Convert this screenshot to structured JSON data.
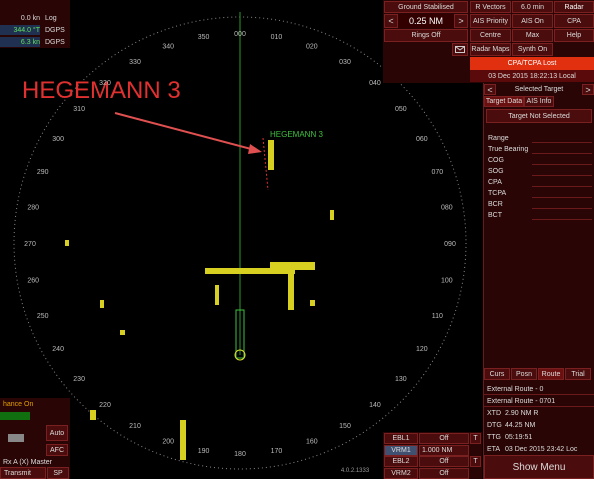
{
  "own_ship": {
    "log_speed": "0.0 kn",
    "log_source": "Log",
    "heading": "344.0 °T",
    "heading_source": "DGPS",
    "speed": "6.3 kn",
    "speed_source": "DGPS"
  },
  "radar": {
    "bearings": [
      "000",
      "010",
      "020",
      "030",
      "040",
      "050",
      "060",
      "070",
      "080",
      "090",
      "100",
      "110",
      "120",
      "130",
      "140",
      "150",
      "160",
      "170",
      "180",
      "190",
      "200",
      "210",
      "220",
      "230",
      "240",
      "250",
      "260",
      "270",
      "280",
      "290",
      "300",
      "310",
      "320",
      "330",
      "340",
      "350"
    ],
    "target_label": "HEGEMANN 3",
    "annotation": "HEGEMANN 3"
  },
  "top_controls": {
    "stabilisation": "Ground Stabilised",
    "vectors": "R Vectors",
    "vector_time": "6.0 min",
    "mode": "Radar",
    "range_down": "<",
    "range": "0.25 NM",
    "range_up": ">",
    "ais_priority": "AIS Priority",
    "ais": "AIS On",
    "cpa": "CPA",
    "rings": "Rings Off",
    "centre": "Centre",
    "max": "Max",
    "help": "Help",
    "radar_maps": "Radar Maps",
    "synth": "Synth On",
    "alarm": "CPA/TCPA Lost",
    "datetime": "03 Dec 2015 18:22:13 Local"
  },
  "selected_target": {
    "prev": "<",
    "title": "Selected Target",
    "next": ">",
    "tabs": [
      "Target Data",
      "AIS Info"
    ],
    "status": "Target Not Selected",
    "fields": [
      "Range",
      "True Bearing",
      "COG",
      "SOG",
      "CPA",
      "TCPA",
      "BCR",
      "BCT"
    ]
  },
  "route_panel": {
    "tabs": [
      "Curs",
      "Posn",
      "Route",
      "Trial"
    ],
    "lines": [
      "External Route - 0",
      "External Route - 0701"
    ],
    "rows": [
      [
        "XTD",
        "2.90 NM R"
      ],
      [
        "DTG",
        "44.25 NM"
      ],
      [
        "TTG",
        "05:19:51"
      ],
      [
        "ETA",
        "03 Dec 2015 23:42 Loc"
      ]
    ],
    "menu": "Show Menu"
  },
  "ebl_vrm": {
    "rows": [
      [
        "EBL1",
        "Off",
        "T"
      ],
      [
        "VRM1",
        "1.000 NM",
        ""
      ],
      [
        "EBL2",
        "Off",
        "T"
      ],
      [
        "VRM2",
        "Off",
        ""
      ]
    ],
    "version": "4.0.2.1333"
  },
  "left_controls": {
    "enhance": "hance On",
    "auto": "Auto",
    "afc": "AFC",
    "master": "Rx A (X) Master",
    "transmit": "Transmit",
    "sp": "SP"
  }
}
